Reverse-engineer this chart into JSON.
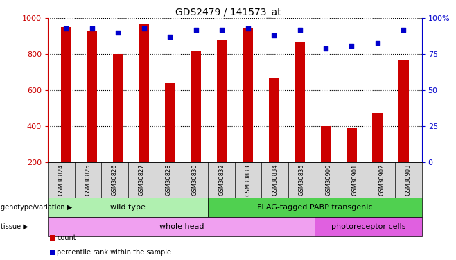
{
  "title": "GDS2479 / 141573_at",
  "samples": [
    "GSM30824",
    "GSM30825",
    "GSM30826",
    "GSM30827",
    "GSM30828",
    "GSM30830",
    "GSM30832",
    "GSM30833",
    "GSM30834",
    "GSM30835",
    "GSM30900",
    "GSM30901",
    "GSM30902",
    "GSM30903"
  ],
  "counts": [
    950,
    930,
    800,
    965,
    645,
    820,
    880,
    945,
    670,
    865,
    400,
    395,
    475,
    765
  ],
  "percentiles": [
    93,
    93,
    90,
    93,
    87,
    92,
    92,
    93,
    88,
    92,
    79,
    81,
    83,
    92
  ],
  "ylim_left": [
    200,
    1000
  ],
  "ylim_right": [
    0,
    100
  ],
  "yticks_left": [
    200,
    400,
    600,
    800,
    1000
  ],
  "yticks_right": [
    0,
    25,
    50,
    75,
    100
  ],
  "bar_color": "#cc0000",
  "dot_color": "#0000cc",
  "grid_color": "#000000",
  "genotype_groups": [
    {
      "label": "wild type",
      "start": 0,
      "end": 6,
      "color": "#b0f0b0"
    },
    {
      "label": "FLAG-tagged PABP transgenic",
      "start": 6,
      "end": 14,
      "color": "#50d050"
    }
  ],
  "tissue_groups": [
    {
      "label": "whole head",
      "start": 0,
      "end": 10,
      "color": "#f0a0f0"
    },
    {
      "label": "photoreceptor cells",
      "start": 10,
      "end": 14,
      "color": "#e060e0"
    }
  ],
  "tick_bg_color": "#d8d8d8",
  "bar_width": 0.4,
  "left_label_color": "#cc0000",
  "right_label_color": "#0000cc",
  "legend_items": [
    {
      "label": "count",
      "color": "#cc0000"
    },
    {
      "label": "percentile rank within the sample",
      "color": "#0000cc"
    }
  ]
}
